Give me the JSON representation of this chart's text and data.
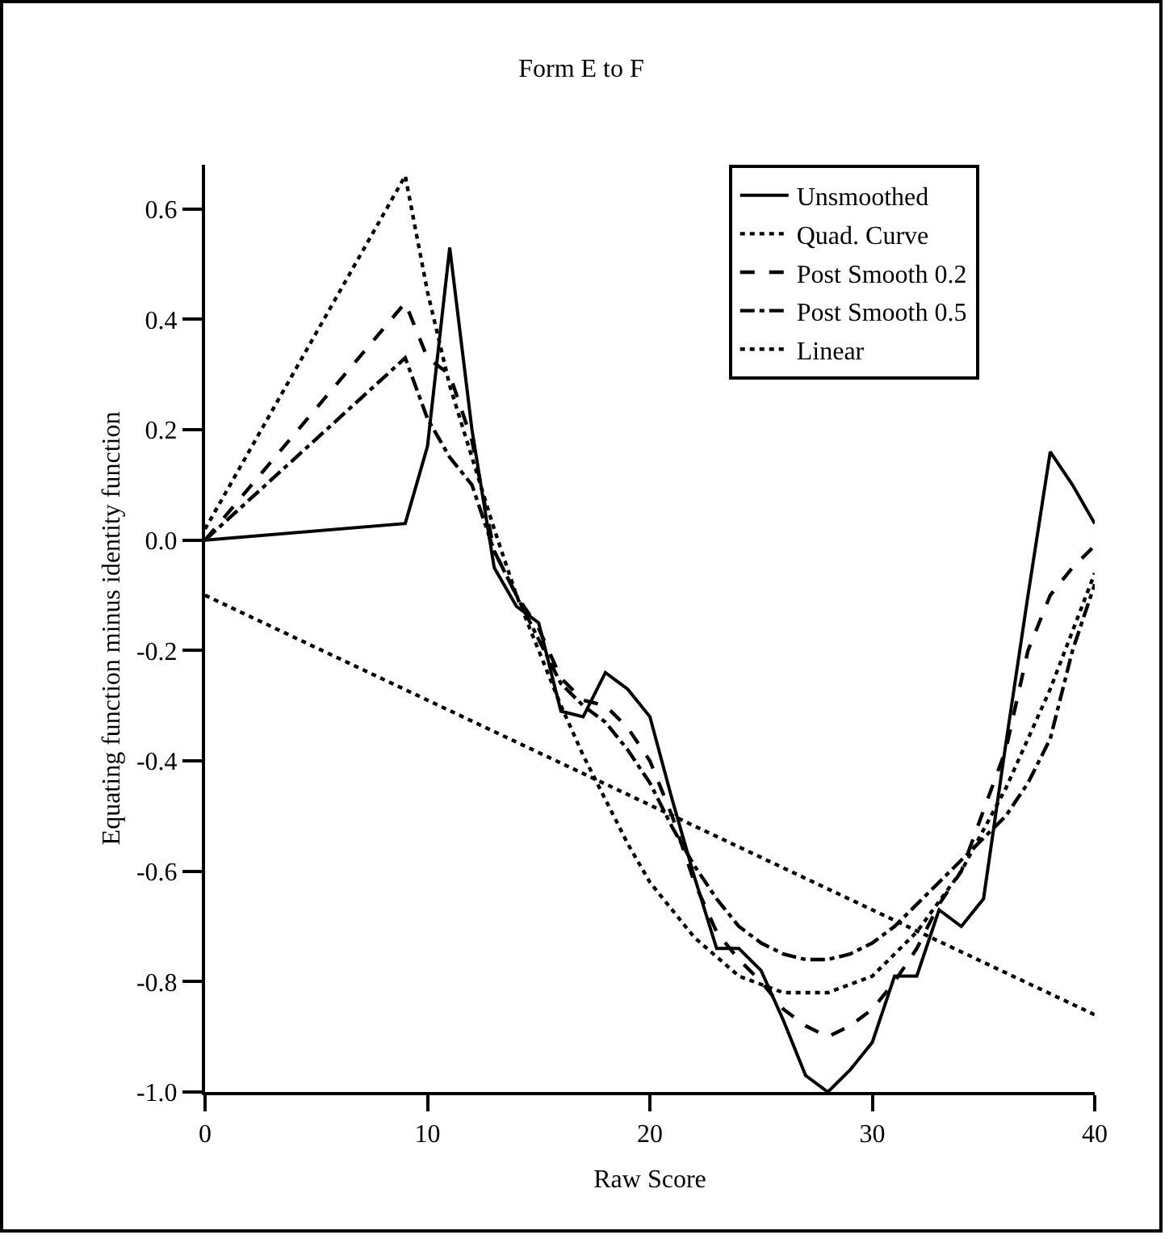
{
  "chart_data": {
    "type": "line",
    "title": "Form E to F",
    "xlabel": "Raw Score",
    "ylabel": "Equating function minus identity function",
    "xlim": [
      0,
      40
    ],
    "xticks": [
      0,
      10,
      20,
      30,
      40
    ],
    "ylim": [
      -1.0,
      0.68
    ],
    "yticks": [
      {
        "value": -1.0,
        "label": "-1.0"
      },
      {
        "value": -0.8,
        "label": "-0.8"
      },
      {
        "value": -0.6,
        "label": "-0.6"
      },
      {
        "value": -0.4,
        "label": "-0.4"
      },
      {
        "value": -0.2,
        "label": "-0.2"
      },
      {
        "value": 0,
        "label": "0.0"
      },
      {
        "value": 0.2,
        "label": "0.2"
      },
      {
        "value": 0.4,
        "label": "0.4"
      },
      {
        "value": 0.6,
        "label": "0.6"
      }
    ],
    "grid": false,
    "legend": "top right",
    "marker": "none",
    "series": [
      {
        "name": "Unsmoothed",
        "color": "#000000",
        "line_style": "solid",
        "x": [
          0,
          9,
          10,
          11,
          12,
          13,
          14,
          15,
          16,
          17,
          18,
          19,
          20,
          21,
          22,
          23,
          24,
          25,
          26,
          27,
          28,
          29,
          30,
          31,
          32,
          33,
          34,
          35,
          36,
          37,
          38,
          39,
          40
        ],
        "values": [
          0.0,
          0.03,
          0.17,
          0.53,
          0.2,
          -0.05,
          -0.12,
          -0.15,
          -0.31,
          -0.32,
          -0.24,
          -0.27,
          -0.32,
          -0.47,
          -0.61,
          -0.74,
          -0.74,
          -0.78,
          -0.87,
          -0.97,
          -1.0,
          -0.96,
          -0.91,
          -0.79,
          -0.79,
          -0.67,
          -0.7,
          -0.65,
          -0.37,
          -0.1,
          0.16,
          0.1,
          0.03
        ]
      },
      {
        "name": "Quad. Curve",
        "color": "#000000",
        "line_style": "dotted",
        "x": [
          0,
          9,
          10,
          11,
          12,
          13,
          14,
          15,
          16,
          17,
          18,
          19,
          20,
          22,
          24,
          26,
          28,
          30,
          32,
          34,
          36,
          38,
          40
        ],
        "values": [
          0.02,
          0.66,
          0.45,
          0.28,
          0.15,
          0.02,
          -0.1,
          -0.2,
          -0.3,
          -0.39,
          -0.47,
          -0.55,
          -0.62,
          -0.72,
          -0.79,
          -0.82,
          -0.82,
          -0.79,
          -0.71,
          -0.6,
          -0.45,
          -0.27,
          -0.06
        ]
      },
      {
        "name": "Post Smooth 0.2",
        "color": "#000000",
        "line_style": "dashed",
        "x": [
          0,
          9,
          10,
          11,
          12,
          13,
          14,
          15,
          16,
          17,
          18,
          19,
          20,
          21,
          22,
          23,
          24,
          25,
          26,
          27,
          28,
          29,
          30,
          31,
          32,
          33,
          34,
          35,
          36,
          37,
          38,
          39,
          40
        ],
        "values": [
          0.0,
          0.43,
          0.33,
          0.3,
          0.18,
          -0.02,
          -0.1,
          -0.16,
          -0.25,
          -0.29,
          -0.3,
          -0.34,
          -0.4,
          -0.5,
          -0.62,
          -0.71,
          -0.76,
          -0.8,
          -0.85,
          -0.88,
          -0.9,
          -0.88,
          -0.85,
          -0.8,
          -0.74,
          -0.66,
          -0.6,
          -0.49,
          -0.38,
          -0.2,
          -0.1,
          -0.05,
          -0.01
        ]
      },
      {
        "name": "Post Smooth 0.5",
        "color": "#000000",
        "line_style": "dashdot",
        "x": [
          0,
          9,
          10,
          11,
          12,
          13,
          14,
          15,
          16,
          17,
          18,
          19,
          20,
          21,
          22,
          23,
          24,
          25,
          26,
          27,
          28,
          29,
          30,
          31,
          32,
          33,
          34,
          35,
          36,
          37,
          38,
          39,
          40
        ],
        "values": [
          0.0,
          0.33,
          0.22,
          0.15,
          0.1,
          -0.02,
          -0.1,
          -0.18,
          -0.26,
          -0.3,
          -0.33,
          -0.38,
          -0.44,
          -0.52,
          -0.59,
          -0.65,
          -0.7,
          -0.73,
          -0.75,
          -0.76,
          -0.76,
          -0.75,
          -0.73,
          -0.7,
          -0.66,
          -0.62,
          -0.58,
          -0.54,
          -0.5,
          -0.44,
          -0.36,
          -0.2,
          -0.08
        ]
      },
      {
        "name": "Linear",
        "color": "#000000",
        "line_style": "dotted",
        "x": [
          0,
          40
        ],
        "values": [
          -0.1,
          -0.86
        ]
      }
    ]
  }
}
